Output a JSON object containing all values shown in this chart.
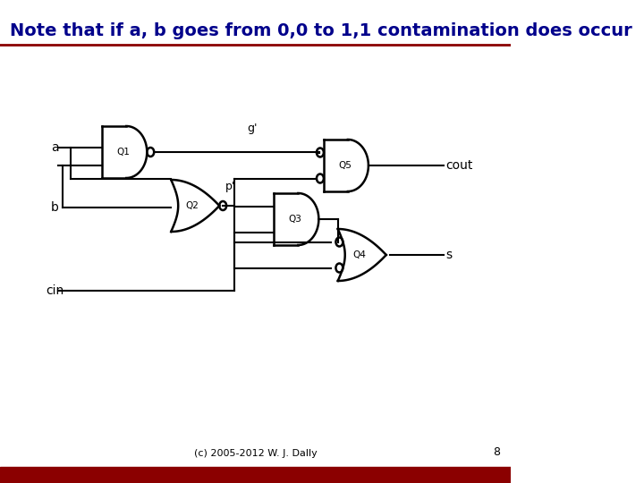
{
  "title": "Note that if a, b goes from 0,0 to 1,1 contamination does occur",
  "title_color": "#00008B",
  "title_fontsize": 14,
  "footer_text": "(c) 2005-2012 W. J. Dally",
  "page_number": "8",
  "footer_bar_color": "#8B0000",
  "bg_color": "#FFFFFF"
}
